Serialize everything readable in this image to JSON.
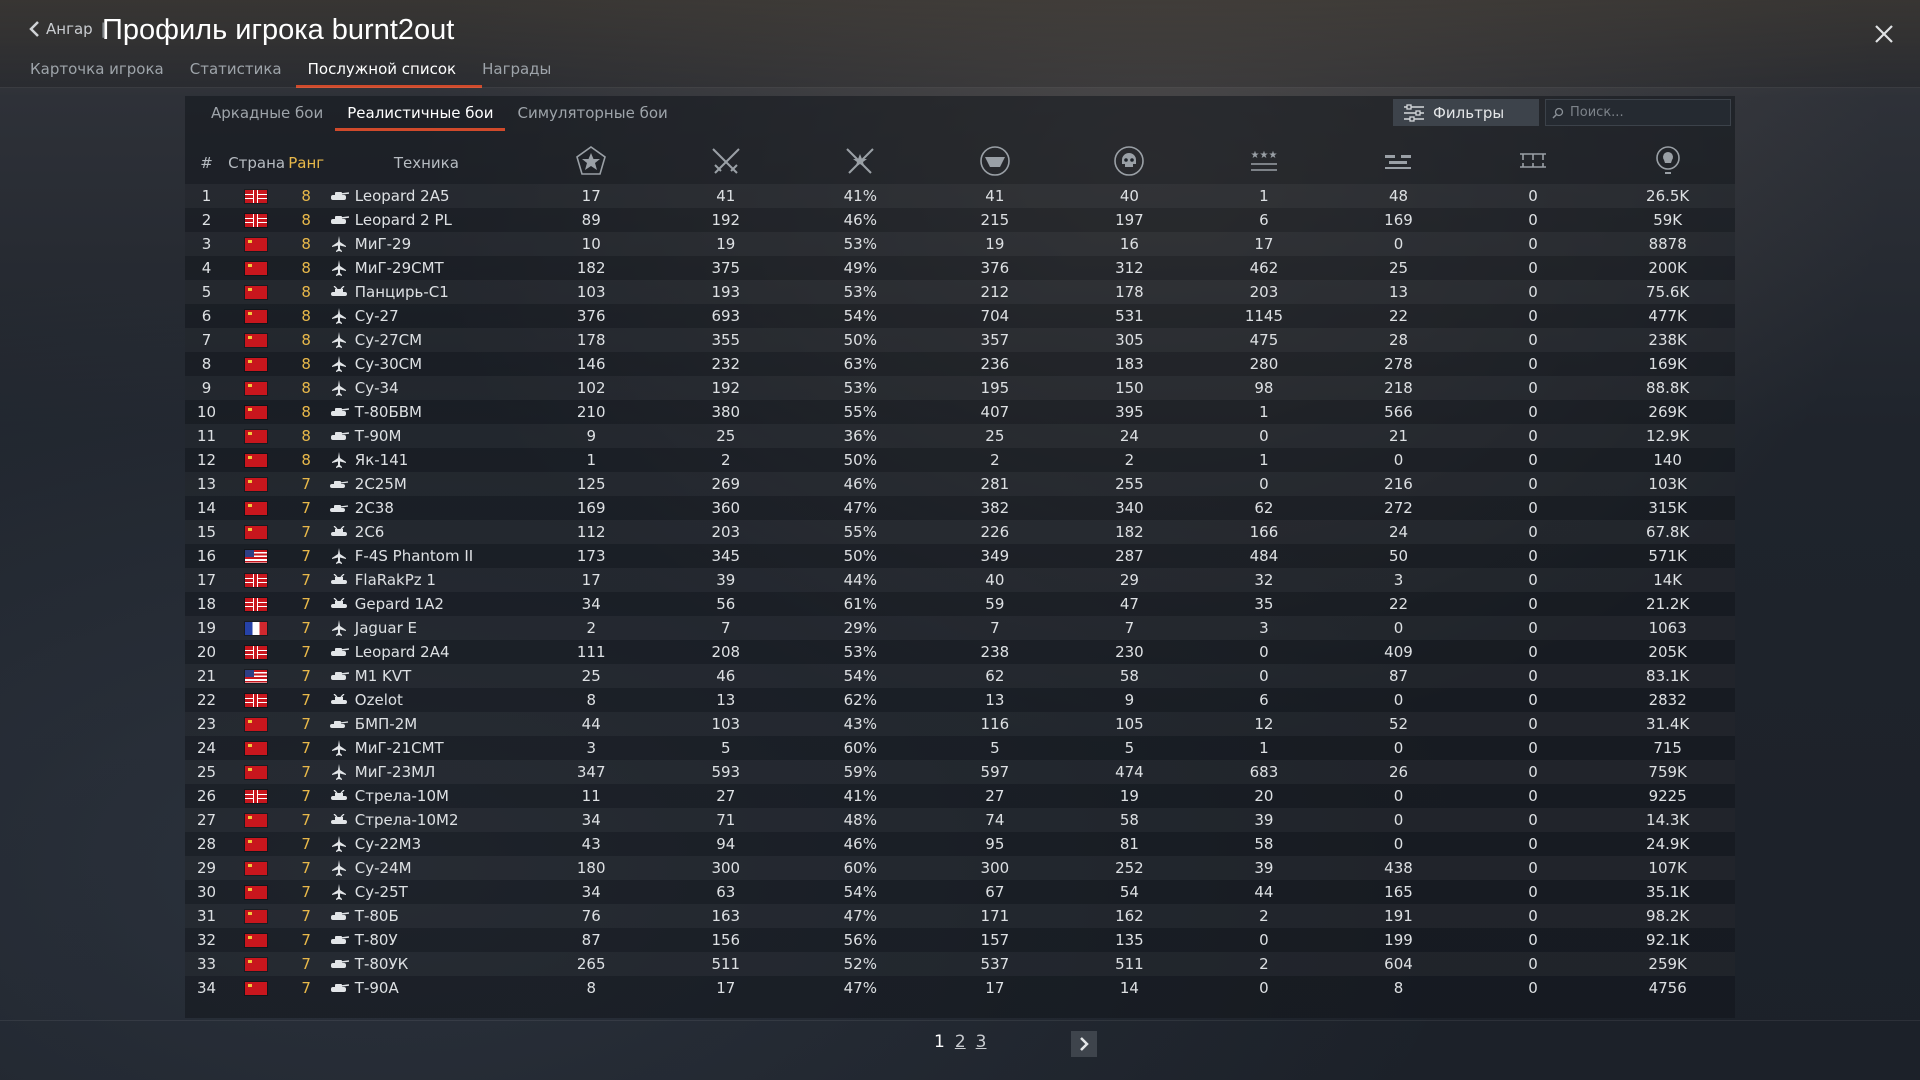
{
  "header": {
    "back_label": "Ангар",
    "separator": "|",
    "title": "Профиль игрока burnt2out"
  },
  "tabs": [
    "Карточка игрока",
    "Статистика",
    "Послужной список",
    "Награды"
  ],
  "active_tab": 2,
  "subtabs": [
    "Аркадные бои",
    "Реалистичные бои",
    "Симуляторные бои"
  ],
  "active_subtab": 1,
  "filter_label": "Фильтры",
  "search_placeholder": "Поиск...",
  "columns": {
    "num": "#",
    "country": "Страна",
    "rank": "Ранг",
    "vehicle": "Техника",
    "icons": [
      "victories-icon",
      "battles-icon",
      "win-rate-icon",
      "respawns-icon",
      "deaths-icon",
      "air-kills-icon",
      "ground-kills-icon",
      "naval-kills-icon",
      "research-points-icon"
    ]
  },
  "accent_color": "#d04a2b",
  "rank_color": "#e8b84a",
  "rows": [
    {
      "n": "1",
      "flag": "de",
      "rank": "8",
      "type": "tank",
      "name": "Leopard 2A5",
      "v": [
        "17",
        "41",
        "41%",
        "41",
        "40",
        "1",
        "48",
        "0",
        "26.5K"
      ]
    },
    {
      "n": "2",
      "flag": "de",
      "rank": "8",
      "type": "tank",
      "name": "Leopard 2 PL",
      "v": [
        "89",
        "192",
        "46%",
        "215",
        "197",
        "6",
        "169",
        "0",
        "59K"
      ]
    },
    {
      "n": "3",
      "flag": "ussr",
      "rank": "8",
      "type": "jet",
      "name": "МиГ-29",
      "v": [
        "10",
        "19",
        "53%",
        "19",
        "16",
        "17",
        "0",
        "0",
        "8878"
      ]
    },
    {
      "n": "4",
      "flag": "ussr",
      "rank": "8",
      "type": "jet",
      "name": "МиГ-29СМТ",
      "v": [
        "182",
        "375",
        "49%",
        "376",
        "312",
        "462",
        "25",
        "0",
        "200K"
      ]
    },
    {
      "n": "5",
      "flag": "ussr",
      "rank": "8",
      "type": "aa",
      "name": "Панцирь-С1",
      "v": [
        "103",
        "193",
        "53%",
        "212",
        "178",
        "203",
        "13",
        "0",
        "75.6K"
      ]
    },
    {
      "n": "6",
      "flag": "ussr",
      "rank": "8",
      "type": "jet",
      "name": "Су-27",
      "v": [
        "376",
        "693",
        "54%",
        "704",
        "531",
        "1145",
        "22",
        "0",
        "477K"
      ]
    },
    {
      "n": "7",
      "flag": "ussr",
      "rank": "8",
      "type": "jet",
      "name": "Су-27СМ",
      "v": [
        "178",
        "355",
        "50%",
        "357",
        "305",
        "475",
        "28",
        "0",
        "238K"
      ]
    },
    {
      "n": "8",
      "flag": "ussr",
      "rank": "8",
      "type": "jet",
      "name": "Су-30СМ",
      "v": [
        "146",
        "232",
        "63%",
        "236",
        "183",
        "280",
        "278",
        "0",
        "169K"
      ]
    },
    {
      "n": "9",
      "flag": "ussr",
      "rank": "8",
      "type": "jet",
      "name": "Су-34",
      "v": [
        "102",
        "192",
        "53%",
        "195",
        "150",
        "98",
        "218",
        "0",
        "88.8K"
      ]
    },
    {
      "n": "10",
      "flag": "ussr",
      "rank": "8",
      "type": "tank",
      "name": "Т-80БВМ",
      "v": [
        "210",
        "380",
        "55%",
        "407",
        "395",
        "1",
        "566",
        "0",
        "269K"
      ]
    },
    {
      "n": "11",
      "flag": "ussr",
      "rank": "8",
      "type": "tank",
      "name": "Т-90М",
      "v": [
        "9",
        "25",
        "36%",
        "25",
        "24",
        "0",
        "21",
        "0",
        "12.9K"
      ]
    },
    {
      "n": "12",
      "flag": "ussr",
      "rank": "8",
      "type": "jet",
      "name": "Як-141",
      "v": [
        "1",
        "2",
        "50%",
        "2",
        "2",
        "1",
        "0",
        "0",
        "140"
      ]
    },
    {
      "n": "13",
      "flag": "ussr",
      "rank": "7",
      "type": "spg",
      "name": "2С25М",
      "v": [
        "125",
        "269",
        "46%",
        "281",
        "255",
        "0",
        "216",
        "0",
        "103K"
      ]
    },
    {
      "n": "14",
      "flag": "ussr",
      "rank": "7",
      "type": "spg",
      "name": "2С38",
      "v": [
        "169",
        "360",
        "47%",
        "382",
        "340",
        "62",
        "272",
        "0",
        "315K"
      ]
    },
    {
      "n": "15",
      "flag": "ussr",
      "rank": "7",
      "type": "aa",
      "name": "2С6",
      "v": [
        "112",
        "203",
        "55%",
        "226",
        "182",
        "166",
        "24",
        "0",
        "67.8K"
      ]
    },
    {
      "n": "16",
      "flag": "us",
      "rank": "7",
      "type": "jet",
      "name": "F-4S Phantom II",
      "v": [
        "173",
        "345",
        "50%",
        "349",
        "287",
        "484",
        "50",
        "0",
        "571K"
      ]
    },
    {
      "n": "17",
      "flag": "de",
      "rank": "7",
      "type": "aa",
      "name": "FlaRakPz 1",
      "v": [
        "17",
        "39",
        "44%",
        "40",
        "29",
        "32",
        "3",
        "0",
        "14K"
      ]
    },
    {
      "n": "18",
      "flag": "de",
      "rank": "7",
      "type": "aa",
      "name": "Gepard 1A2",
      "v": [
        "34",
        "56",
        "61%",
        "59",
        "47",
        "35",
        "22",
        "0",
        "21.2K"
      ]
    },
    {
      "n": "19",
      "flag": "fr",
      "rank": "7",
      "type": "jet",
      "name": "Jaguar E",
      "v": [
        "2",
        "7",
        "29%",
        "7",
        "7",
        "3",
        "0",
        "0",
        "1063"
      ]
    },
    {
      "n": "20",
      "flag": "de",
      "rank": "7",
      "type": "tank",
      "name": "Leopard 2A4",
      "v": [
        "111",
        "208",
        "53%",
        "238",
        "230",
        "0",
        "409",
        "0",
        "205K"
      ]
    },
    {
      "n": "21",
      "flag": "us",
      "rank": "7",
      "type": "tank",
      "name": "M1 KVT",
      "v": [
        "25",
        "46",
        "54%",
        "62",
        "58",
        "0",
        "87",
        "0",
        "83.1K"
      ]
    },
    {
      "n": "22",
      "flag": "de",
      "rank": "7",
      "type": "aa",
      "name": "Ozelot",
      "v": [
        "8",
        "13",
        "62%",
        "13",
        "9",
        "6",
        "0",
        "0",
        "2832"
      ]
    },
    {
      "n": "23",
      "flag": "ussr",
      "rank": "7",
      "type": "spg",
      "name": "БМП-2М",
      "v": [
        "44",
        "103",
        "43%",
        "116",
        "105",
        "12",
        "52",
        "0",
        "31.4K"
      ]
    },
    {
      "n": "24",
      "flag": "ussr",
      "rank": "7",
      "type": "jet",
      "name": "МиГ-21СМТ",
      "v": [
        "3",
        "5",
        "60%",
        "5",
        "5",
        "1",
        "0",
        "0",
        "715"
      ]
    },
    {
      "n": "25",
      "flag": "ussr",
      "rank": "7",
      "type": "jet",
      "name": "МиГ-23МЛ",
      "v": [
        "347",
        "593",
        "59%",
        "597",
        "474",
        "683",
        "26",
        "0",
        "759K"
      ]
    },
    {
      "n": "26",
      "flag": "de",
      "rank": "7",
      "type": "aa",
      "name": "Стрела-10М",
      "v": [
        "11",
        "27",
        "41%",
        "27",
        "19",
        "20",
        "0",
        "0",
        "9225"
      ]
    },
    {
      "n": "27",
      "flag": "ussr",
      "rank": "7",
      "type": "aa",
      "name": "Стрела-10М2",
      "v": [
        "34",
        "71",
        "48%",
        "74",
        "58",
        "39",
        "0",
        "0",
        "14.3K"
      ]
    },
    {
      "n": "28",
      "flag": "ussr",
      "rank": "7",
      "type": "jet",
      "name": "Су-22М3",
      "v": [
        "43",
        "94",
        "46%",
        "95",
        "81",
        "58",
        "0",
        "0",
        "24.9K"
      ]
    },
    {
      "n": "29",
      "flag": "ussr",
      "rank": "7",
      "type": "jet",
      "name": "Су-24М",
      "v": [
        "180",
        "300",
        "60%",
        "300",
        "252",
        "39",
        "438",
        "0",
        "107K"
      ]
    },
    {
      "n": "30",
      "flag": "ussr",
      "rank": "7",
      "type": "jet",
      "name": "Су-25Т",
      "v": [
        "34",
        "63",
        "54%",
        "67",
        "54",
        "44",
        "165",
        "0",
        "35.1K"
      ]
    },
    {
      "n": "31",
      "flag": "ussr",
      "rank": "7",
      "type": "tank",
      "name": "Т-80Б",
      "v": [
        "76",
        "163",
        "47%",
        "171",
        "162",
        "2",
        "191",
        "0",
        "98.2K"
      ]
    },
    {
      "n": "32",
      "flag": "ussr",
      "rank": "7",
      "type": "tank",
      "name": "Т-80У",
      "v": [
        "87",
        "156",
        "56%",
        "157",
        "135",
        "0",
        "199",
        "0",
        "92.1K"
      ]
    },
    {
      "n": "33",
      "flag": "ussr",
      "rank": "7",
      "type": "tank",
      "name": "Т-80УК",
      "v": [
        "265",
        "511",
        "52%",
        "537",
        "511",
        "2",
        "604",
        "0",
        "259K"
      ]
    },
    {
      "n": "34",
      "flag": "ussr",
      "rank": "7",
      "type": "tank",
      "name": "Т-90А",
      "v": [
        "8",
        "17",
        "47%",
        "17",
        "14",
        "0",
        "8",
        "0",
        "4756"
      ]
    }
  ],
  "pagination": {
    "pages": [
      "1",
      "2",
      "3"
    ],
    "current": "1"
  }
}
